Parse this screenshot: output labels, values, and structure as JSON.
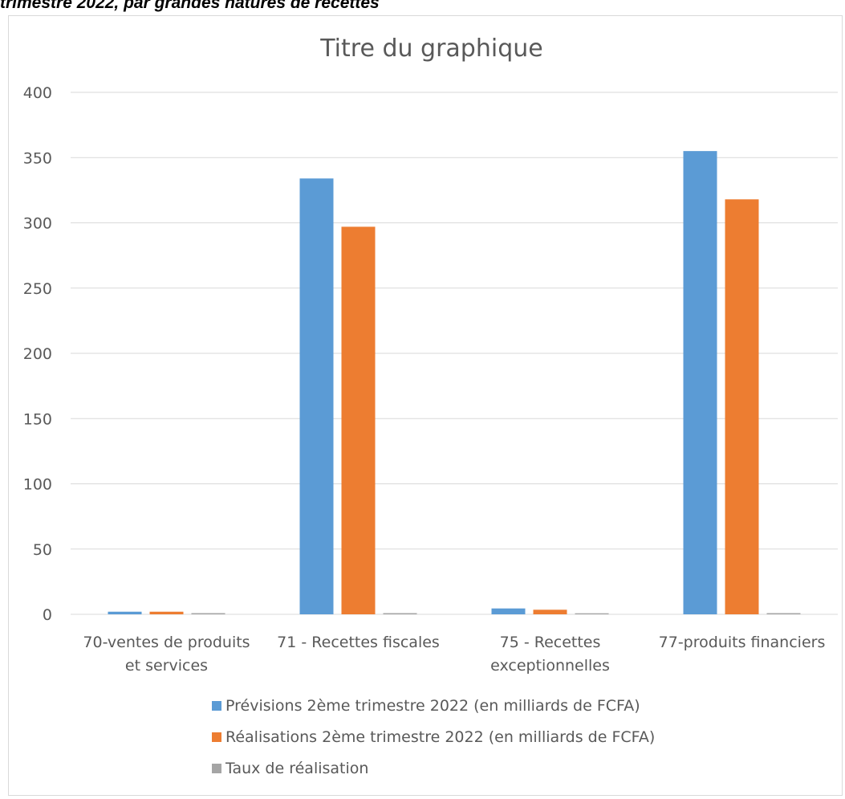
{
  "caption": "trimestre 2022, par grandes natures de recettes",
  "chart_data": {
    "type": "bar",
    "title": "Titre du graphique",
    "xlabel": "",
    "ylabel": "",
    "ylim": [
      0,
      400
    ],
    "yticks": [
      "0",
      "50",
      "100",
      "150",
      "200",
      "250",
      "300",
      "350",
      "400"
    ],
    "grid": true,
    "legend_position": "bottom",
    "categories": [
      [
        "70-ventes de produits",
        "et services"
      ],
      [
        "71 - Recettes fiscales"
      ],
      [
        "75 - Recettes",
        "exceptionnelles"
      ],
      [
        "77-produits financiers"
      ]
    ],
    "series": [
      {
        "name": "Prévisions 2ème trimestre 2022 (en milliards de FCFA)",
        "color": "#5b9bd5",
        "values": [
          2.0,
          334.0,
          4.5,
          355.0
        ]
      },
      {
        "name": "Réalisations 2ème trimestre 2022 (en milliards de FCFA)",
        "color": "#ed7d31",
        "values": [
          2.0,
          297.0,
          3.5,
          318.0
        ]
      },
      {
        "name": "Taux de réalisation",
        "color": "#a5a5a5",
        "values": [
          0.9,
          0.9,
          0.8,
          0.9
        ]
      }
    ]
  }
}
